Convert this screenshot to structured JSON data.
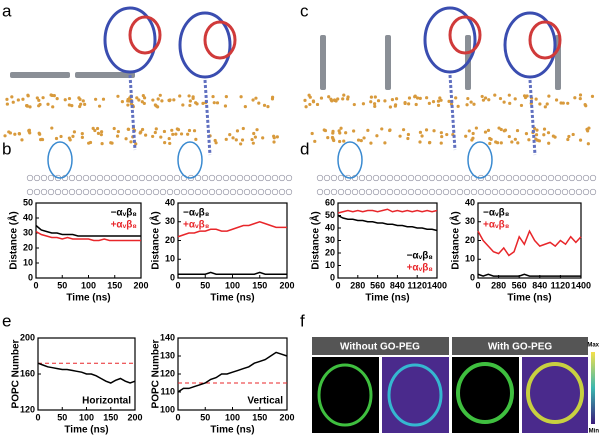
{
  "panel_labels": [
    "a",
    "b",
    "c",
    "d",
    "e",
    "f"
  ],
  "chart_data": [
    {
      "type": "line",
      "xlabel": "Time (ns)",
      "ylabel": "Distance (Å)",
      "xlim": [
        0,
        200
      ],
      "xticks": [
        0,
        50,
        100,
        150,
        200
      ],
      "ylim": [
        0,
        50
      ],
      "yticks": [
        0,
        10,
        20,
        30,
        40,
        50
      ],
      "legend": "upper right",
      "x": [
        0,
        10,
        20,
        30,
        40,
        50,
        60,
        70,
        80,
        90,
        100,
        110,
        120,
        130,
        140,
        150,
        160,
        170,
        180,
        190,
        200
      ],
      "series": [
        {
          "name": "−αᵥβ₈",
          "color": "#000000",
          "values": [
            35,
            32,
            31,
            30,
            30,
            29,
            29,
            29,
            28,
            28,
            28,
            28,
            28,
            28,
            28,
            28,
            28,
            28,
            28,
            28,
            28
          ]
        },
        {
          "name": "+αᵥβ₈",
          "color": "#e8262a",
          "values": [
            31,
            29,
            28,
            27,
            27,
            26,
            27,
            26,
            26,
            26,
            26,
            25,
            25,
            26,
            25,
            25,
            25,
            25,
            25,
            25,
            25
          ]
        }
      ]
    },
    {
      "type": "line",
      "xlabel": "Time (ns)",
      "ylabel": "Distance (Å)",
      "xlim": [
        0,
        200
      ],
      "xticks": [
        0,
        50,
        100,
        150,
        200
      ],
      "ylim": [
        0,
        40
      ],
      "yticks": [
        0,
        10,
        20,
        30,
        40
      ],
      "legend": "upper left",
      "x": [
        0,
        10,
        20,
        30,
        40,
        50,
        60,
        70,
        80,
        90,
        100,
        110,
        120,
        130,
        140,
        150,
        160,
        170,
        180,
        190,
        200
      ],
      "series": [
        {
          "name": "−αᵥβ₈",
          "color": "#000000",
          "values": [
            2,
            2,
            2,
            2,
            2,
            2,
            3,
            2,
            2,
            2,
            2,
            2,
            2,
            2,
            2,
            3,
            2,
            2,
            2,
            2,
            2
          ]
        },
        {
          "name": "+αᵥβ₈",
          "color": "#e8262a",
          "values": [
            22,
            23,
            24,
            24,
            25,
            25,
            26,
            26,
            25,
            25,
            26,
            27,
            28,
            28,
            29,
            30,
            29,
            28,
            27,
            27,
            27
          ]
        }
      ]
    },
    {
      "type": "line",
      "xlabel": "Time (ns)",
      "ylabel": "Distance (Å)",
      "xlim": [
        0,
        1400
      ],
      "xticks": [
        0,
        280,
        560,
        840,
        1120,
        1400
      ],
      "ylim": [
        0,
        60
      ],
      "yticks": [
        0,
        10,
        20,
        30,
        40,
        50,
        60
      ],
      "legend": "lower right",
      "x": [
        0,
        70,
        140,
        210,
        280,
        350,
        420,
        490,
        560,
        630,
        700,
        770,
        840,
        910,
        980,
        1050,
        1120,
        1190,
        1260,
        1330,
        1400
      ],
      "series": [
        {
          "name": "−αᵥβ₈",
          "color": "#000000",
          "values": [
            50,
            48,
            47,
            47,
            46,
            46,
            45,
            45,
            44,
            44,
            43,
            43,
            42,
            42,
            41,
            41,
            40,
            40,
            39,
            39,
            38
          ]
        },
        {
          "name": "+αᵥβ₈",
          "color": "#e8262a",
          "values": [
            52,
            53,
            54,
            53,
            54,
            53,
            54,
            54,
            53,
            54,
            55,
            53,
            54,
            53,
            54,
            53,
            54,
            53,
            54,
            53,
            54
          ]
        }
      ]
    },
    {
      "type": "line",
      "xlabel": "Time (ns)",
      "ylabel": "Distance (Å)",
      "xlim": [
        0,
        1400
      ],
      "xticks": [
        0,
        280,
        560,
        840,
        1120,
        1400
      ],
      "ylim": [
        0,
        40
      ],
      "yticks": [
        0,
        10,
        20,
        30,
        40
      ],
      "legend": "upper left",
      "x": [
        0,
        70,
        140,
        210,
        280,
        350,
        420,
        490,
        560,
        630,
        700,
        770,
        840,
        910,
        980,
        1050,
        1120,
        1190,
        1260,
        1330,
        1400
      ],
      "series": [
        {
          "name": "−αᵥβ₈",
          "color": "#000000",
          "values": [
            2,
            1,
            2,
            1,
            1,
            1,
            1,
            1,
            1,
            2,
            1,
            1,
            1,
            1,
            1,
            1,
            1,
            1,
            1,
            1,
            1
          ]
        },
        {
          "name": "+αᵥβ₈",
          "color": "#e8262a",
          "values": [
            25,
            20,
            17,
            14,
            13,
            16,
            12,
            14,
            22,
            18,
            25,
            20,
            17,
            18,
            19,
            17,
            20,
            18,
            22,
            19,
            22
          ]
        }
      ]
    },
    {
      "type": "line",
      "xlabel": "Time (ns)",
      "ylabel": "POPC Number",
      "annotation": "Horizontal",
      "xlim": [
        0,
        200
      ],
      "xticks": [
        0,
        50,
        100,
        150,
        200
      ],
      "ylim": [
        120,
        200
      ],
      "yticks": [
        120,
        160,
        200
      ],
      "reference_line": {
        "value": 172,
        "color": "#e8262a"
      },
      "x": [
        0,
        10,
        20,
        30,
        40,
        50,
        60,
        70,
        80,
        90,
        100,
        110,
        120,
        130,
        140,
        150,
        160,
        170,
        180,
        190,
        200
      ],
      "series": [
        {
          "color": "#000000",
          "values": [
            172,
            170,
            168,
            167,
            166,
            165,
            165,
            164,
            163,
            162,
            160,
            160,
            158,
            155,
            152,
            150,
            153,
            155,
            152,
            150,
            152
          ]
        }
      ]
    },
    {
      "type": "line",
      "xlabel": "Time (ns)",
      "ylabel": "POPC Number",
      "annotation": "Vertical",
      "xlim": [
        0,
        200
      ],
      "xticks": [
        0,
        50,
        100,
        150,
        200
      ],
      "ylim": [
        100,
        140
      ],
      "yticks": [
        100,
        110,
        120,
        130,
        140
      ],
      "reference_line": {
        "value": 115,
        "color": "#e8262a"
      },
      "x": [
        0,
        10,
        20,
        30,
        40,
        50,
        60,
        70,
        80,
        90,
        100,
        110,
        120,
        130,
        140,
        150,
        160,
        170,
        180,
        190,
        200
      ],
      "series": [
        {
          "color": "#000000",
          "values": [
            110,
            112,
            112,
            113,
            114,
            115,
            117,
            118,
            120,
            120,
            121,
            122,
            123,
            124,
            126,
            127,
            128,
            130,
            132,
            131,
            130
          ]
        }
      ]
    }
  ],
  "microscopy": {
    "headers": [
      "Without GO-PEG",
      "With GO-PEG"
    ],
    "colorbar": [
      "Max",
      "Min"
    ]
  }
}
